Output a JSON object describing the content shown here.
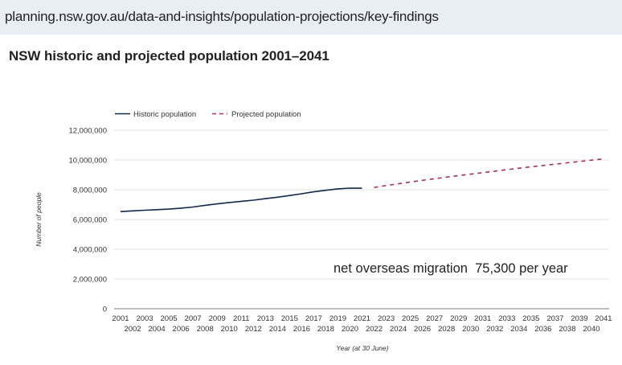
{
  "browser": {
    "url": "planning.nsw.gov.au/data-and-insights/population-projections/key-findings"
  },
  "page": {
    "title": "NSW historic and projected population 2001–2041"
  },
  "colors": {
    "historic": "#14284b",
    "projected": "#a8324e",
    "grid": "#e2e2e2",
    "axis": "#999999"
  },
  "chart_data": {
    "type": "line",
    "title": "NSW historic and projected population 2001–2041",
    "xlabel": "Year (at 30 June)",
    "ylabel": "Number of people",
    "ylim": [
      0,
      12000000
    ],
    "xlim": [
      2001,
      2041
    ],
    "grid": true,
    "legend_position": "top-left",
    "yticks": [
      0,
      2000000,
      4000000,
      6000000,
      8000000,
      10000000,
      12000000
    ],
    "ytick_labels": [
      "0",
      "2,000,000",
      "4,000,000",
      "6,000,000",
      "8,000,000",
      "10,000,000",
      "12,000,000"
    ],
    "xticks": [
      2001,
      2002,
      2003,
      2004,
      2005,
      2006,
      2007,
      2008,
      2009,
      2010,
      2011,
      2012,
      2013,
      2014,
      2015,
      2016,
      2017,
      2018,
      2019,
      2020,
      2021,
      2022,
      2023,
      2024,
      2025,
      2026,
      2027,
      2028,
      2029,
      2030,
      2031,
      2032,
      2033,
      2034,
      2035,
      2036,
      2037,
      2038,
      2039,
      2040,
      2041
    ],
    "series": [
      {
        "name": "Historic population",
        "style": "solid",
        "x": [
          2001,
          2002,
          2003,
          2004,
          2005,
          2006,
          2007,
          2008,
          2009,
          2010,
          2011,
          2012,
          2013,
          2014,
          2015,
          2016,
          2017,
          2018,
          2019,
          2020,
          2021
        ],
        "values": [
          6530000,
          6580000,
          6620000,
          6660000,
          6700000,
          6760000,
          6840000,
          6950000,
          7050000,
          7140000,
          7220000,
          7300000,
          7400000,
          7500000,
          7610000,
          7730000,
          7860000,
          7960000,
          8060000,
          8110000,
          8100000
        ]
      },
      {
        "name": "Projected population",
        "style": "dashed",
        "x": [
          2022,
          2023,
          2024,
          2025,
          2026,
          2027,
          2028,
          2029,
          2030,
          2031,
          2032,
          2033,
          2034,
          2035,
          2036,
          2037,
          2038,
          2039,
          2040,
          2041
        ],
        "values": [
          8150000,
          8280000,
          8400000,
          8520000,
          8630000,
          8740000,
          8850000,
          8950000,
          9050000,
          9150000,
          9250000,
          9350000,
          9450000,
          9540000,
          9630000,
          9720000,
          9810000,
          9900000,
          9990000,
          10070000
        ]
      }
    ],
    "annotations": [
      {
        "text": "net overseas migration  75,300 per year"
      }
    ]
  }
}
